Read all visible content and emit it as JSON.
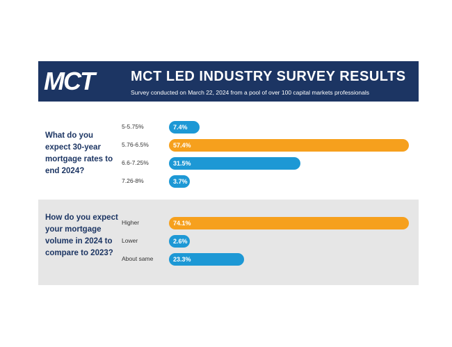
{
  "header": {
    "logo": "MCT",
    "title": "MCT LED INDUSTRY SURVEY RESULTS",
    "subtitle": "Survey conducted on March 22, 2024 from a pool of over 100 capital markets professionals"
  },
  "chart_data": [
    {
      "type": "bar",
      "title": "What do you expect 30-year mortgage rates to end 2024?",
      "categories": [
        "5-5.75%",
        "5.76-6.5%",
        "6.6-7.25%",
        "7.26-8%"
      ],
      "values": [
        7.4,
        57.4,
        31.5,
        3.7
      ],
      "value_labels": [
        "7.4%",
        "57.4%",
        "31.5%",
        "3.7%"
      ],
      "colors": [
        "#1d98d5",
        "#f6a01d",
        "#1d98d5",
        "#1d98d5"
      ]
    },
    {
      "type": "bar",
      "title": "How do you expect your mortgage volume in 2024 to compare to 2023?",
      "categories": [
        "Higher",
        "Lower",
        "About same"
      ],
      "values": [
        74.1,
        2.6,
        23.3
      ],
      "value_labels": [
        "74.1%",
        "2.6%",
        "23.3%"
      ],
      "colors": [
        "#f6a01d",
        "#1d98d5",
        "#1d98d5"
      ]
    }
  ]
}
